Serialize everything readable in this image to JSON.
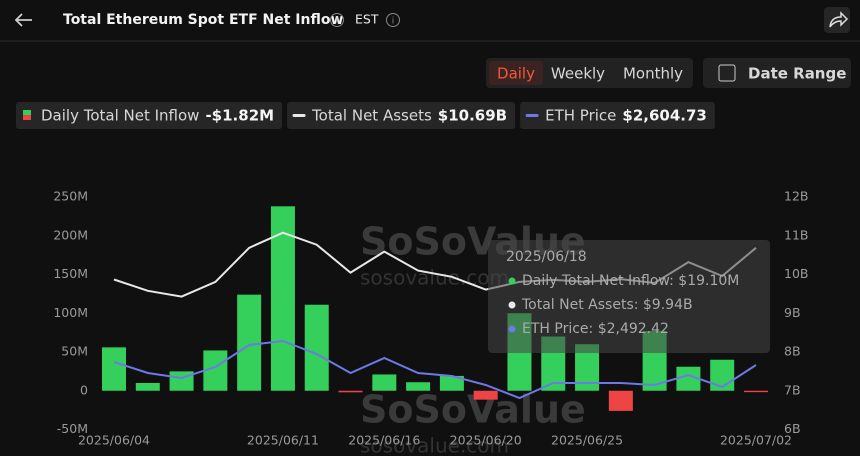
{
  "header": {
    "title": "Total Ethereum Spot ETF Net Inflow",
    "timezone": "EST"
  },
  "controls": {
    "periods": [
      "Daily",
      "Weekly",
      "Monthly"
    ],
    "date_range": "Date Range"
  },
  "watermarks": [
    "SoSoValue",
    "sosovalue.com"
  ],
  "chart_data": {
    "type": "bar",
    "categories": [
      "2025/06/04",
      null,
      null,
      null,
      null,
      "2025/06/11",
      null,
      null,
      "2025/06/16",
      null,
      null,
      "2025/06/20",
      null,
      null,
      "2025/06/25",
      null,
      null,
      null,
      null,
      "2025/07/02"
    ],
    "series": [
      {
        "name": "Daily Total Net Inflow",
        "type": "bar",
        "color": "#35cf5c",
        "negative_color": "#ef4444",
        "current_label": "-$1.82M",
        "values": [
          56,
          10,
          25,
          52,
          124,
          238,
          111,
          -2,
          21,
          11,
          19.1,
          -11.5,
          100,
          70,
          60,
          -26,
          77,
          31,
          40,
          -1.82
        ]
      },
      {
        "name": "Total Net Assets",
        "type": "line",
        "axis": "y2",
        "color": "#e8e8e8",
        "current_label": "$10.69B",
        "values": [
          9.87,
          9.58,
          9.43,
          9.81,
          10.69,
          11.08,
          10.77,
          10.05,
          10.59,
          10.1,
          9.94,
          9.61,
          9.81,
          9.86,
          9.81,
          9.88,
          9.78,
          10.32,
          9.96,
          10.69
        ]
      },
      {
        "name": "ETH Price",
        "type": "line",
        "color": "#6e78e6",
        "current_label": "$2,604.73",
        "values": [
          2635,
          2523,
          2472,
          2584,
          2808,
          2849,
          2716,
          2523,
          2676,
          2523,
          2492.42,
          2400,
          2268,
          2421,
          2421,
          2421,
          2400,
          2502,
          2380,
          2604.73
        ]
      }
    ],
    "ylim": [
      -50,
      250
    ],
    "yticks": [
      {
        "value": -50,
        "label": "-50M"
      },
      0,
      {
        "value": 50,
        "label": "50M"
      },
      {
        "value": 100,
        "label": "100M"
      },
      {
        "value": 150,
        "label": "150M"
      },
      {
        "value": 200,
        "label": "200M"
      },
      {
        "value": 250,
        "label": "250M"
      }
    ],
    "y2lim": [
      6,
      12
    ],
    "y2ticks": [
      {
        "value": 6,
        "label": "6B"
      },
      {
        "value": 7,
        "label": "7B"
      },
      {
        "value": 8,
        "label": "8B"
      },
      {
        "value": 9,
        "label": "9B"
      },
      {
        "value": 10,
        "label": "10B"
      },
      {
        "value": 11,
        "label": "11B"
      },
      {
        "value": 12,
        "label": "12B"
      }
    ],
    "grid": false,
    "tooltip": {
      "date": "2025/06/18",
      "lines": [
        "Daily Total Net Inflow: $19.10M",
        "Total Net Assets: $9.94B",
        "ETH Price: $2,492.42"
      ]
    }
  }
}
